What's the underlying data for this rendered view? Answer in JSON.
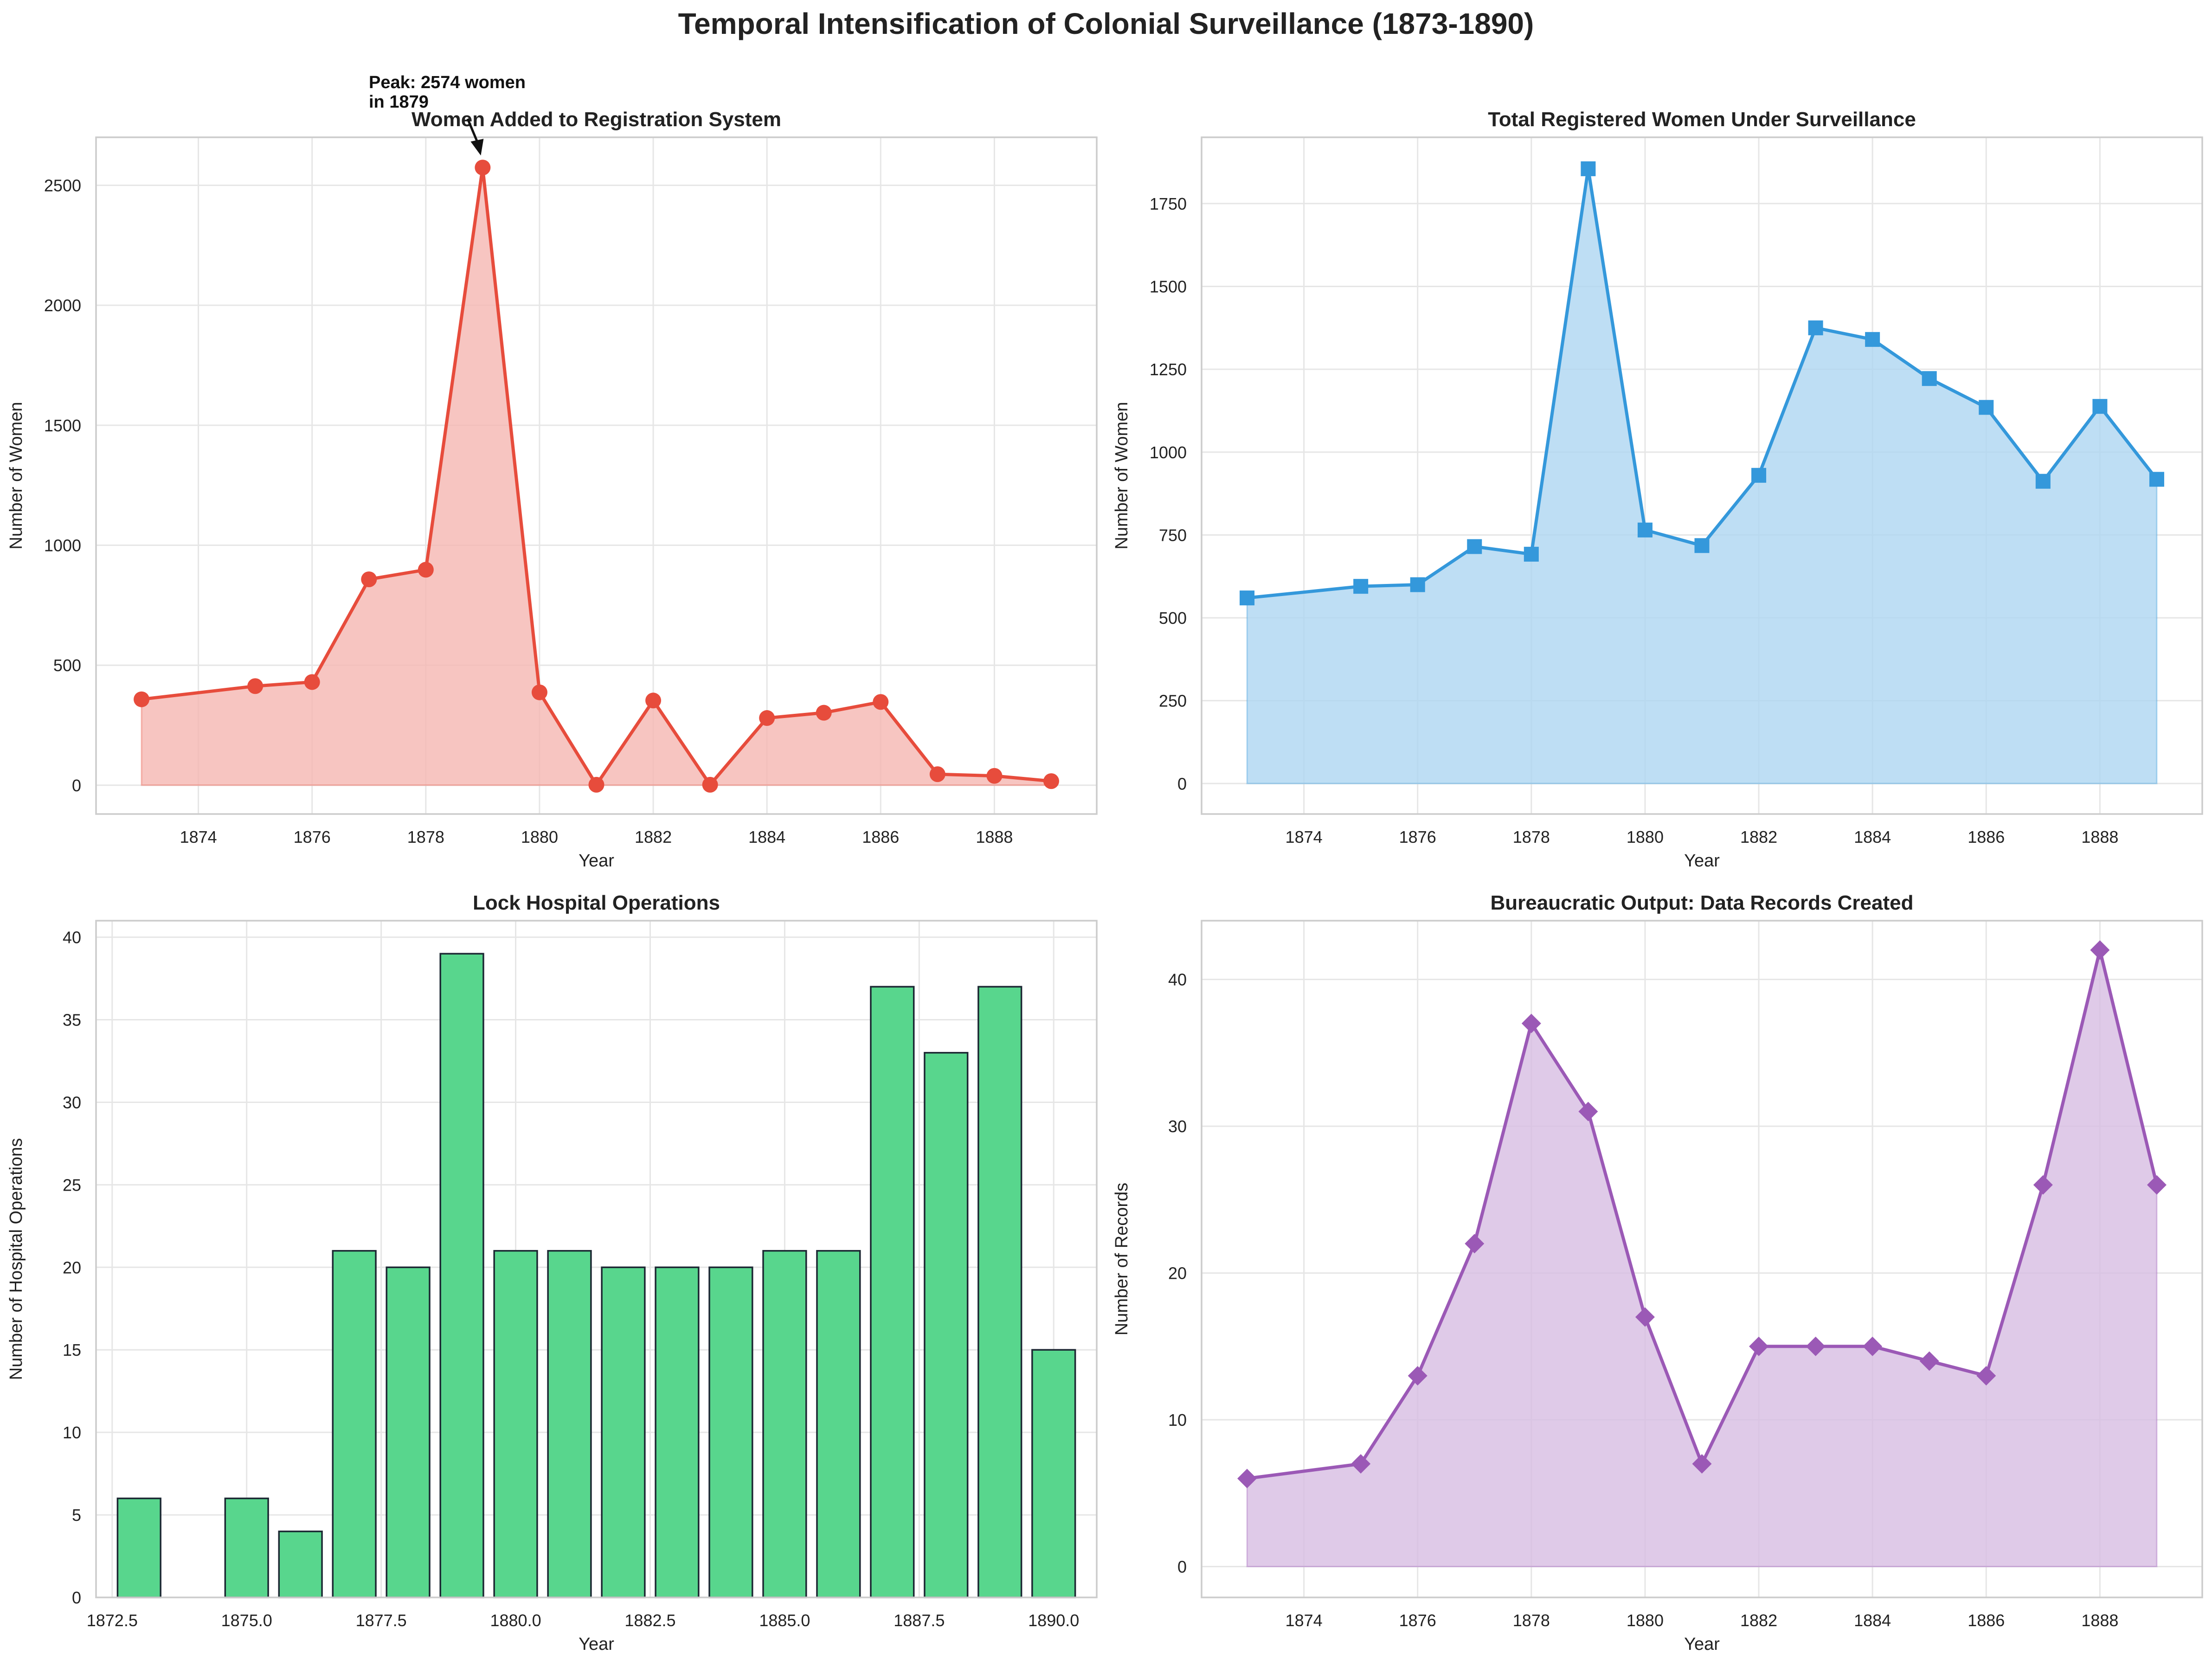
{
  "figure": {
    "title": "Temporal Intensification of Colonial Surveillance (1873-1890)"
  },
  "chart_data": [
    {
      "type": "area",
      "title": "Women Added to Registration System",
      "xlabel": "Year",
      "ylabel": "Number of Women",
      "x": [
        1873,
        1875,
        1876,
        1877,
        1878,
        1879,
        1880,
        1881,
        1882,
        1883,
        1884,
        1885,
        1886,
        1887,
        1888,
        1889
      ],
      "values": [
        358,
        413,
        430,
        858,
        898,
        2574,
        387,
        2,
        353,
        2,
        280,
        302,
        347,
        46,
        39,
        17
      ],
      "xlim": [
        1872.2,
        1889.8
      ],
      "ylim": [
        -120,
        2700
      ],
      "xticks": [
        1874,
        1876,
        1878,
        1880,
        1882,
        1884,
        1886,
        1888
      ],
      "yticks": [
        0,
        500,
        1000,
        1500,
        2000,
        2500
      ],
      "color": "#e74c3c",
      "fill_color": "#f5b7b1",
      "marker": "circle",
      "grid": true,
      "annotation": {
        "lines": [
          "Peak: 2574 women",
          "in 1879"
        ],
        "target": {
          "x": 1879,
          "y": 2574
        }
      }
    },
    {
      "type": "area",
      "title": "Total Registered Women Under Surveillance",
      "xlabel": "Year",
      "ylabel": "Number of Women",
      "x": [
        1873,
        1875,
        1876,
        1877,
        1878,
        1879,
        1880,
        1881,
        1882,
        1883,
        1884,
        1885,
        1886,
        1887,
        1888,
        1889
      ],
      "values": [
        560,
        595,
        600,
        715,
        692,
        1855,
        765,
        718,
        930,
        1375,
        1340,
        1222,
        1135,
        912,
        1138,
        918
      ],
      "xlim": [
        1872.2,
        1889.8
      ],
      "ylim": [
        -92,
        1950
      ],
      "xticks": [
        1874,
        1876,
        1878,
        1880,
        1882,
        1884,
        1886,
        1888
      ],
      "yticks": [
        0,
        250,
        500,
        750,
        1000,
        1250,
        1500,
        1750
      ],
      "color": "#3498db",
      "fill_color": "#aed6f1",
      "marker": "square",
      "grid": true
    },
    {
      "type": "bar",
      "title": "Lock Hospital Operations",
      "xlabel": "Year",
      "ylabel": "Number of Hospital Operations",
      "x": [
        1873,
        1875,
        1876,
        1877,
        1878,
        1879,
        1880,
        1881,
        1882,
        1883,
        1884,
        1885,
        1886,
        1887,
        1888,
        1889,
        1890
      ],
      "values": [
        6,
        6,
        4,
        21,
        20,
        39,
        21,
        21,
        20,
        20,
        20,
        21,
        21,
        37,
        33,
        37,
        15
      ],
      "xlim": [
        1872.2,
        1890.8
      ],
      "ylim": [
        0,
        41
      ],
      "xticks": [
        1872.5,
        1875.0,
        1877.5,
        1880.0,
        1882.5,
        1885.0,
        1887.5,
        1890.0
      ],
      "xtick_labels": [
        "1872.5",
        "1875.0",
        "1877.5",
        "1880.0",
        "1882.5",
        "1885.0",
        "1887.5",
        "1890.0"
      ],
      "yticks": [
        0,
        5,
        10,
        15,
        20,
        25,
        30,
        35,
        40
      ],
      "color": "#58d68d",
      "edge_color": "#1c2833",
      "grid": true
    },
    {
      "type": "area",
      "title": "Bureaucratic Output: Data Records Created",
      "xlabel": "Year",
      "ylabel": "Number of Records",
      "x": [
        1873,
        1875,
        1876,
        1877,
        1878,
        1879,
        1880,
        1881,
        1882,
        1883,
        1884,
        1885,
        1886,
        1887,
        1888,
        1889
      ],
      "values": [
        6,
        7,
        13,
        22,
        37,
        31,
        17,
        7,
        15,
        15,
        15,
        14,
        13,
        26,
        42,
        26
      ],
      "xlim": [
        1872.2,
        1889.8
      ],
      "ylim": [
        -2.1,
        44
      ],
      "xticks": [
        1874,
        1876,
        1878,
        1880,
        1882,
        1884,
        1886,
        1888
      ],
      "yticks": [
        0,
        10,
        20,
        30,
        40
      ],
      "color": "#9b59b6",
      "fill_color": "#d7bde2",
      "marker": "diamond",
      "grid": true
    }
  ]
}
